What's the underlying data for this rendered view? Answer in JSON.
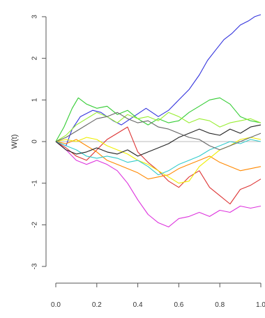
{
  "chart_data": {
    "type": "line",
    "title": "",
    "xlabel": "",
    "ylabel": "W(t)",
    "xlim": [
      0.0,
      1.0
    ],
    "ylim": [
      -3.2,
      3.2
    ],
    "xticks": [
      0.0,
      0.2,
      0.4,
      0.6,
      0.8,
      1.0
    ],
    "xtick_labels": [
      "0.0",
      "0.2",
      "0.4",
      "0.6",
      "0.8",
      "1.0"
    ],
    "yticks": [
      -3,
      -2,
      -1,
      0,
      1,
      2,
      3
    ],
    "ytick_labels": [
      "-3",
      "-2",
      "-1",
      "0",
      "1",
      "2",
      "3"
    ],
    "reference_line": {
      "y": 0,
      "color": "#bbbbbb"
    },
    "grid": false,
    "legend": "none",
    "series": [
      {
        "color": "#3333dd",
        "x": [
          0,
          0.05,
          0.08,
          0.12,
          0.18,
          0.22,
          0.28,
          0.32,
          0.38,
          0.44,
          0.5,
          0.55,
          0.6,
          0.65,
          0.7,
          0.74,
          0.78,
          0.82,
          0.86,
          0.9,
          0.94,
          0.97,
          1.0
        ],
        "y": [
          0,
          -0.1,
          0.3,
          0.6,
          0.75,
          0.7,
          0.5,
          0.4,
          0.6,
          0.8,
          0.6,
          0.75,
          1.0,
          1.25,
          1.6,
          1.95,
          2.2,
          2.45,
          2.6,
          2.8,
          2.9,
          3.0,
          3.05
        ]
      },
      {
        "color": "#33cc33",
        "x": [
          0,
          0.04,
          0.08,
          0.11,
          0.15,
          0.2,
          0.25,
          0.3,
          0.35,
          0.4,
          0.45,
          0.5,
          0.55,
          0.6,
          0.65,
          0.7,
          0.75,
          0.8,
          0.85,
          0.9,
          0.95,
          1.0
        ],
        "y": [
          0,
          0.35,
          0.8,
          1.05,
          0.9,
          0.8,
          0.85,
          0.65,
          0.75,
          0.55,
          0.4,
          0.55,
          0.45,
          0.5,
          0.7,
          0.85,
          1.0,
          1.05,
          0.9,
          0.6,
          0.5,
          0.45
        ]
      },
      {
        "color": "#99ee33",
        "x": [
          0,
          0.05,
          0.1,
          0.15,
          0.2,
          0.25,
          0.3,
          0.35,
          0.4,
          0.45,
          0.5,
          0.55,
          0.6,
          0.65,
          0.7,
          0.75,
          0.8,
          0.85,
          0.9,
          0.95,
          1.0
        ],
        "y": [
          0,
          0.15,
          0.4,
          0.55,
          0.7,
          0.6,
          0.45,
          0.65,
          0.55,
          0.6,
          0.5,
          0.7,
          0.6,
          0.45,
          0.55,
          0.5,
          0.35,
          0.45,
          0.5,
          0.55,
          0.45
        ]
      },
      {
        "color": "#dd3333",
        "x": [
          0,
          0.05,
          0.1,
          0.15,
          0.2,
          0.25,
          0.3,
          0.35,
          0.4,
          0.45,
          0.5,
          0.55,
          0.6,
          0.65,
          0.7,
          0.75,
          0.8,
          0.85,
          0.9,
          0.95,
          1.0
        ],
        "y": [
          0,
          -0.15,
          -0.35,
          -0.45,
          -0.2,
          0.05,
          0.2,
          0.35,
          -0.25,
          -0.5,
          -0.7,
          -0.95,
          -1.1,
          -0.85,
          -0.7,
          -1.1,
          -1.3,
          -1.5,
          -1.15,
          -1.05,
          -0.9
        ]
      },
      {
        "color": "#dd33dd",
        "x": [
          0,
          0.05,
          0.1,
          0.15,
          0.2,
          0.25,
          0.3,
          0.35,
          0.4,
          0.45,
          0.5,
          0.55,
          0.6,
          0.65,
          0.7,
          0.75,
          0.8,
          0.85,
          0.9,
          0.95,
          1.0
        ],
        "y": [
          0,
          -0.2,
          -0.45,
          -0.55,
          -0.45,
          -0.55,
          -0.7,
          -1.0,
          -1.4,
          -1.75,
          -1.95,
          -2.05,
          -1.85,
          -1.8,
          -1.7,
          -1.8,
          -1.65,
          -1.7,
          -1.55,
          -1.6,
          -1.55
        ]
      },
      {
        "color": "#ff8800",
        "x": [
          0,
          0.05,
          0.1,
          0.15,
          0.2,
          0.25,
          0.3,
          0.35,
          0.4,
          0.45,
          0.5,
          0.55,
          0.6,
          0.65,
          0.7,
          0.75,
          0.8,
          0.85,
          0.9,
          0.95,
          1.0
        ],
        "y": [
          0,
          -0.05,
          0.05,
          -0.1,
          -0.25,
          -0.45,
          -0.55,
          -0.65,
          -0.75,
          -0.9,
          -0.85,
          -0.8,
          -0.65,
          -0.55,
          -0.45,
          -0.35,
          -0.5,
          -0.6,
          -0.7,
          -0.65,
          -0.6
        ]
      },
      {
        "color": "#eeee00",
        "x": [
          0,
          0.05,
          0.1,
          0.15,
          0.2,
          0.25,
          0.3,
          0.35,
          0.4,
          0.45,
          0.5,
          0.55,
          0.6,
          0.65,
          0.7,
          0.75,
          0.8,
          0.85,
          0.9,
          0.95,
          1.0
        ],
        "y": [
          0,
          0.05,
          0.0,
          0.1,
          0.05,
          -0.1,
          -0.2,
          -0.3,
          -0.45,
          -0.55,
          -0.7,
          -0.85,
          -1.0,
          -0.95,
          -0.6,
          -0.4,
          -0.2,
          -0.1,
          0.05,
          0.1,
          0.05
        ]
      },
      {
        "color": "#33cccc",
        "x": [
          0,
          0.05,
          0.1,
          0.15,
          0.2,
          0.25,
          0.3,
          0.35,
          0.4,
          0.45,
          0.5,
          0.55,
          0.6,
          0.65,
          0.7,
          0.75,
          0.8,
          0.85,
          0.9,
          0.95,
          1.0
        ],
        "y": [
          0,
          -0.1,
          -0.2,
          -0.35,
          -0.4,
          -0.35,
          -0.4,
          -0.5,
          -0.45,
          -0.6,
          -0.8,
          -0.7,
          -0.55,
          -0.45,
          -0.35,
          -0.2,
          -0.1,
          0.0,
          -0.05,
          0.05,
          0.0
        ]
      },
      {
        "color": "#222222",
        "x": [
          0,
          0.05,
          0.1,
          0.15,
          0.2,
          0.25,
          0.3,
          0.35,
          0.4,
          0.45,
          0.5,
          0.55,
          0.6,
          0.65,
          0.7,
          0.75,
          0.8,
          0.85,
          0.9,
          0.95,
          1.0
        ],
        "y": [
          0,
          -0.2,
          -0.3,
          -0.25,
          -0.15,
          -0.25,
          -0.3,
          -0.2,
          -0.35,
          -0.25,
          -0.15,
          -0.05,
          0.1,
          0.2,
          0.3,
          0.2,
          0.15,
          0.3,
          0.2,
          0.35,
          0.4
        ]
      },
      {
        "color": "#666666",
        "x": [
          0,
          0.05,
          0.1,
          0.15,
          0.2,
          0.25,
          0.3,
          0.35,
          0.4,
          0.45,
          0.5,
          0.55,
          0.6,
          0.65,
          0.7,
          0.75,
          0.8,
          0.85,
          0.9,
          0.95,
          1.0
        ],
        "y": [
          0,
          0.1,
          0.25,
          0.4,
          0.55,
          0.6,
          0.7,
          0.55,
          0.45,
          0.5,
          0.35,
          0.3,
          0.2,
          0.1,
          0.05,
          -0.1,
          -0.2,
          -0.1,
          0.0,
          0.1,
          0.2
        ]
      }
    ]
  }
}
